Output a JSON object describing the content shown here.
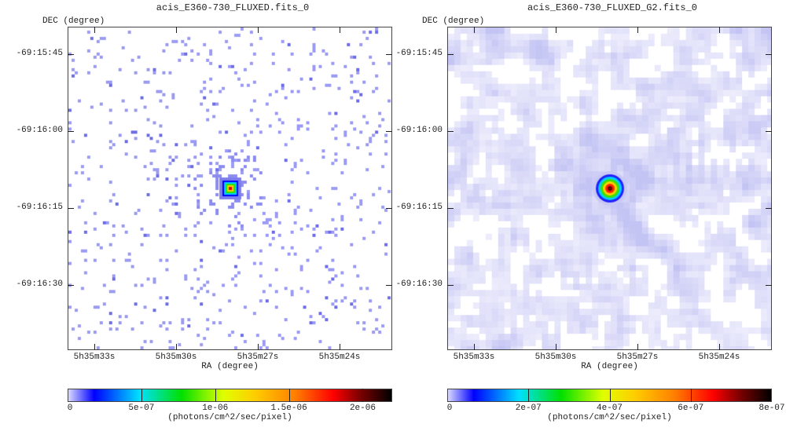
{
  "panels": [
    {
      "title": "acis_E360-730_FLUXED.fits_0",
      "dec_label": "DEC (degree)",
      "ra_label": "RA (degree)",
      "dec_ticks": [
        "-69:15:45",
        "-69:16:00",
        "-69:16:15",
        "-69:16:30"
      ],
      "ra_ticks": [
        "5h35m33s",
        "5h35m30s",
        "5h35m27s",
        "5h35m24s"
      ],
      "style": "sparse",
      "colorbar": {
        "min": 0,
        "max": 2.2e-06,
        "ticks": [
          "0",
          "5e-07",
          "1e-06",
          "1.5e-06",
          "2e-06"
        ],
        "tick_values": [
          0,
          5e-07,
          1e-06,
          1.5e-06,
          2e-06
        ],
        "unit": "(photons/cm^2/sec/pixel)"
      }
    },
    {
      "title": "acis_E360-730_FLUXED_G2.fits_0",
      "dec_label": "DEC (degree)",
      "ra_label": "RA (degree)",
      "dec_ticks": [
        "-69:15:45",
        "-69:16:00",
        "-69:16:15",
        "-69:16:30"
      ],
      "ra_ticks": [
        "5h35m33s",
        "5h35m30s",
        "5h35m27s",
        "5h35m24s"
      ],
      "style": "smoothed",
      "colorbar": {
        "min": 0,
        "max": 8e-07,
        "ticks": [
          "0",
          "2e-07",
          "4e-07",
          "6e-07",
          "8e-07"
        ],
        "tick_values": [
          0,
          2e-07,
          4e-07,
          6e-07,
          8e-07
        ],
        "unit": "(photons/cm^2/sec/pixel)"
      }
    }
  ]
}
